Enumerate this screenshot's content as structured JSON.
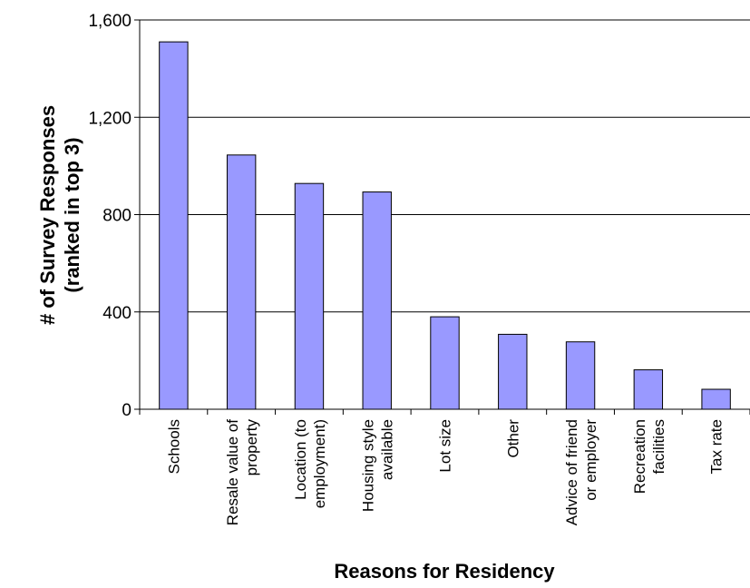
{
  "chart_data": {
    "type": "bar",
    "title": "",
    "xlabel": "Reasons for Residency",
    "ylabel": [
      "# of Survey Responses",
      "(ranked in top 3)"
    ],
    "ylim": [
      0,
      1600
    ],
    "yticks": [
      0,
      400,
      800,
      1200,
      1600
    ],
    "ytick_labels": [
      "0",
      "400",
      "800",
      "1,200",
      "1,600"
    ],
    "grid": true,
    "bar_color": "#9999ff",
    "categories": [
      [
        "Schools"
      ],
      [
        "Resale value of",
        "property"
      ],
      [
        "Location (to",
        "employment)"
      ],
      [
        "Housing style",
        "available"
      ],
      [
        "Lot size"
      ],
      [
        "Other"
      ],
      [
        "Advice of friend",
        "or employer"
      ],
      [
        "Recreation",
        "facilities"
      ],
      [
        "Tax rate"
      ]
    ],
    "values": [
      1510,
      1045,
      928,
      893,
      380,
      308,
      277,
      162,
      82
    ]
  }
}
